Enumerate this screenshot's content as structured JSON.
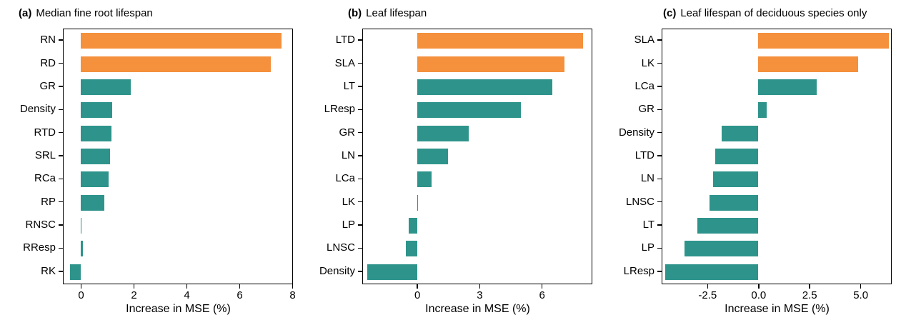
{
  "colors": {
    "orange": "#F5903D",
    "teal": "#2E948B",
    "axis": "#000000",
    "background": "#FFFFFF"
  },
  "chart_data": [
    {
      "type": "bar",
      "orientation": "horizontal",
      "panel_label": "(a)",
      "title": "Median fine root lifespan",
      "xlabel": "Increase in MSE (%)",
      "categories": [
        "RN",
        "RD",
        "GR",
        "Density",
        "RTD",
        "SRL",
        "RCa",
        "RP",
        "RNSC",
        "RResp",
        "RK"
      ],
      "values": [
        7.6,
        7.2,
        1.9,
        1.2,
        1.15,
        1.1,
        1.05,
        0.9,
        0.02,
        0.07,
        -0.4
      ],
      "bar_colors": [
        "orange",
        "orange",
        "teal",
        "teal",
        "teal",
        "teal",
        "teal",
        "teal",
        "teal",
        "teal",
        "teal"
      ],
      "xlim": [
        -0.65,
        8.0
      ],
      "xticks": [
        0,
        2,
        4,
        6,
        8
      ],
      "xtick_labels": [
        "0",
        "2",
        "4",
        "6",
        "8"
      ],
      "grid": false,
      "legend": "none"
    },
    {
      "type": "bar",
      "orientation": "horizontal",
      "panel_label": "(b)",
      "title": "Leaf lifespan",
      "xlabel": "Increase in MSE (%)",
      "categories": [
        "LTD",
        "SLA",
        "LT",
        "LResp",
        "GR",
        "LN",
        "LCa",
        "LK",
        "LP",
        "LNSC",
        "Density"
      ],
      "values": [
        8.0,
        7.1,
        6.5,
        5.0,
        2.5,
        1.5,
        0.7,
        0.05,
        -0.4,
        -0.55,
        -2.4
      ],
      "bar_colors": [
        "orange",
        "orange",
        "teal",
        "teal",
        "teal",
        "teal",
        "teal",
        "teal",
        "teal",
        "teal",
        "teal"
      ],
      "xlim": [
        -2.6,
        8.4
      ],
      "xticks": [
        0,
        3,
        6
      ],
      "xtick_labels": [
        "0",
        "3",
        "6"
      ],
      "grid": false,
      "legend": "none"
    },
    {
      "type": "bar",
      "orientation": "horizontal",
      "panel_label": "(c)",
      "title": "Leaf lifespan of deciduous species only",
      "xlabel": "Increase in MSE (%)",
      "categories": [
        "SLA",
        "LK",
        "LCa",
        "GR",
        "Density",
        "LTD",
        "LN",
        "LNSC",
        "LT",
        "LP",
        "LResp"
      ],
      "values": [
        6.4,
        4.9,
        2.85,
        0.4,
        -1.8,
        -2.1,
        -2.2,
        -2.4,
        -3.0,
        -3.6,
        -4.55
      ],
      "bar_colors": [
        "orange",
        "orange",
        "teal",
        "teal",
        "teal",
        "teal",
        "teal",
        "teal",
        "teal",
        "teal",
        "teal"
      ],
      "xlim": [
        -4.7,
        6.5
      ],
      "xticks": [
        -2.5,
        0.0,
        2.5,
        5.0
      ],
      "xtick_labels": [
        "-2.5",
        "0.0",
        "2.5",
        "5.0"
      ],
      "grid": false,
      "legend": "none"
    }
  ]
}
